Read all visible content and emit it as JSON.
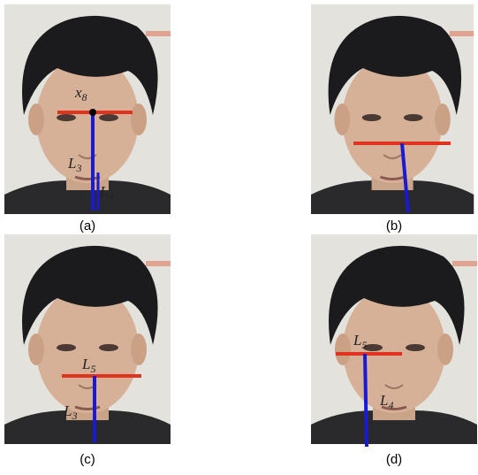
{
  "panels": [
    {
      "caption": "(a)",
      "labels": [
        {
          "main": "x",
          "sub": "8"
        },
        {
          "main": "L",
          "sub": "3"
        },
        {
          "main": "L",
          "sub": "4"
        }
      ]
    },
    {
      "caption": "(b)",
      "labels": []
    },
    {
      "caption": "(c)",
      "labels": [
        {
          "main": "L",
          "sub": "5"
        },
        {
          "main": "L",
          "sub": "3"
        }
      ]
    },
    {
      "caption": "(d)",
      "labels": [
        {
          "main": "L",
          "sub": "5"
        },
        {
          "main": "L",
          "sub": "4"
        }
      ]
    }
  ]
}
